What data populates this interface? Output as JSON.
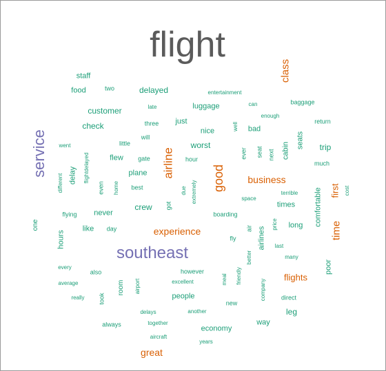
{
  "words": [
    {
      "text": "flight",
      "color": "#5b5b5b"
    },
    {
      "text": "southeast",
      "color": "#7570b3"
    },
    {
      "text": "service",
      "color": "#7570b3"
    },
    {
      "text": "class",
      "color": "#d95f02"
    },
    {
      "text": "airline",
      "color": "#d95f02"
    },
    {
      "text": "good",
      "color": "#d95f02"
    },
    {
      "text": "business",
      "color": "#d95f02"
    },
    {
      "text": "experience",
      "color": "#d95f02"
    },
    {
      "text": "time",
      "color": "#d95f02"
    },
    {
      "text": "first",
      "color": "#d95f02"
    },
    {
      "text": "flights",
      "color": "#d95f02"
    },
    {
      "text": "great",
      "color": "#d95f02"
    },
    {
      "text": "staff",
      "color": "#1b9e77"
    },
    {
      "text": "food",
      "color": "#1b9e77"
    },
    {
      "text": "two",
      "color": "#1b9e77"
    },
    {
      "text": "delayed",
      "color": "#1b9e77"
    },
    {
      "text": "entertainment",
      "color": "#1b9e77"
    },
    {
      "text": "can",
      "color": "#1b9e77"
    },
    {
      "text": "baggage",
      "color": "#1b9e77"
    },
    {
      "text": "customer",
      "color": "#1b9e77"
    },
    {
      "text": "late",
      "color": "#1b9e77"
    },
    {
      "text": "luggage",
      "color": "#1b9e77"
    },
    {
      "text": "enough",
      "color": "#1b9e77"
    },
    {
      "text": "check",
      "color": "#1b9e77"
    },
    {
      "text": "three",
      "color": "#1b9e77"
    },
    {
      "text": "just",
      "color": "#1b9e77"
    },
    {
      "text": "well",
      "color": "#1b9e77"
    },
    {
      "text": "bad",
      "color": "#1b9e77"
    },
    {
      "text": "return",
      "color": "#1b9e77"
    },
    {
      "text": "nice",
      "color": "#1b9e77"
    },
    {
      "text": "will",
      "color": "#1b9e77"
    },
    {
      "text": "seats",
      "color": "#1b9e77"
    },
    {
      "text": "went",
      "color": "#1b9e77"
    },
    {
      "text": "little",
      "color": "#1b9e77"
    },
    {
      "text": "worst",
      "color": "#1b9e77"
    },
    {
      "text": "ever",
      "color": "#1b9e77"
    },
    {
      "text": "seat",
      "color": "#1b9e77"
    },
    {
      "text": "next",
      "color": "#1b9e77"
    },
    {
      "text": "cabin",
      "color": "#1b9e77"
    },
    {
      "text": "trip",
      "color": "#1b9e77"
    },
    {
      "text": "flightdelayed",
      "color": "#1b9e77"
    },
    {
      "text": "flew",
      "color": "#1b9e77"
    },
    {
      "text": "gate",
      "color": "#1b9e77"
    },
    {
      "text": "hour",
      "color": "#1b9e77"
    },
    {
      "text": "much",
      "color": "#1b9e77"
    },
    {
      "text": "delay",
      "color": "#1b9e77"
    },
    {
      "text": "plane",
      "color": "#1b9e77"
    },
    {
      "text": "different",
      "color": "#1b9e77"
    },
    {
      "text": "even",
      "color": "#1b9e77"
    },
    {
      "text": "home",
      "color": "#1b9e77"
    },
    {
      "text": "best",
      "color": "#1b9e77"
    },
    {
      "text": "due",
      "color": "#1b9e77"
    },
    {
      "text": "extremely",
      "color": "#1b9e77"
    },
    {
      "text": "terrible",
      "color": "#1b9e77"
    },
    {
      "text": "cost",
      "color": "#1b9e77"
    },
    {
      "text": "space",
      "color": "#1b9e77"
    },
    {
      "text": "crew",
      "color": "#1b9e77"
    },
    {
      "text": "got",
      "color": "#1b9e77"
    },
    {
      "text": "times",
      "color": "#1b9e77"
    },
    {
      "text": "comfortable",
      "color": "#1b9e77"
    },
    {
      "text": "flying",
      "color": "#1b9e77"
    },
    {
      "text": "never",
      "color": "#1b9e77"
    },
    {
      "text": "boarding",
      "color": "#1b9e77"
    },
    {
      "text": "one",
      "color": "#1b9e77"
    },
    {
      "text": "like",
      "color": "#1b9e77"
    },
    {
      "text": "day",
      "color": "#1b9e77"
    },
    {
      "text": "air",
      "color": "#1b9e77"
    },
    {
      "text": "price",
      "color": "#1b9e77"
    },
    {
      "text": "long",
      "color": "#1b9e77"
    },
    {
      "text": "hours",
      "color": "#1b9e77"
    },
    {
      "text": "fly",
      "color": "#1b9e77"
    },
    {
      "text": "airlines",
      "color": "#1b9e77"
    },
    {
      "text": "last",
      "color": "#1b9e77"
    },
    {
      "text": "better",
      "color": "#1b9e77"
    },
    {
      "text": "many",
      "color": "#1b9e77"
    },
    {
      "text": "every",
      "color": "#1b9e77"
    },
    {
      "text": "poor",
      "color": "#1b9e77"
    },
    {
      "text": "also",
      "color": "#1b9e77"
    },
    {
      "text": "however",
      "color": "#1b9e77"
    },
    {
      "text": "average",
      "color": "#1b9e77"
    },
    {
      "text": "airport",
      "color": "#1b9e77"
    },
    {
      "text": "excellent",
      "color": "#1b9e77"
    },
    {
      "text": "meal",
      "color": "#1b9e77"
    },
    {
      "text": "friendly",
      "color": "#1b9e77"
    },
    {
      "text": "room",
      "color": "#1b9e77"
    },
    {
      "text": "company",
      "color": "#1b9e77"
    },
    {
      "text": "really",
      "color": "#1b9e77"
    },
    {
      "text": "took",
      "color": "#1b9e77"
    },
    {
      "text": "people",
      "color": "#1b9e77"
    },
    {
      "text": "direct",
      "color": "#1b9e77"
    },
    {
      "text": "new",
      "color": "#1b9e77"
    },
    {
      "text": "delays",
      "color": "#1b9e77"
    },
    {
      "text": "another",
      "color": "#1b9e77"
    },
    {
      "text": "leg",
      "color": "#1b9e77"
    },
    {
      "text": "always",
      "color": "#1b9e77"
    },
    {
      "text": "together",
      "color": "#1b9e77"
    },
    {
      "text": "way",
      "color": "#1b9e77"
    },
    {
      "text": "economy",
      "color": "#1b9e77"
    },
    {
      "text": "aircraft",
      "color": "#1b9e77"
    },
    {
      "text": "years",
      "color": "#1b9e77"
    }
  ]
}
